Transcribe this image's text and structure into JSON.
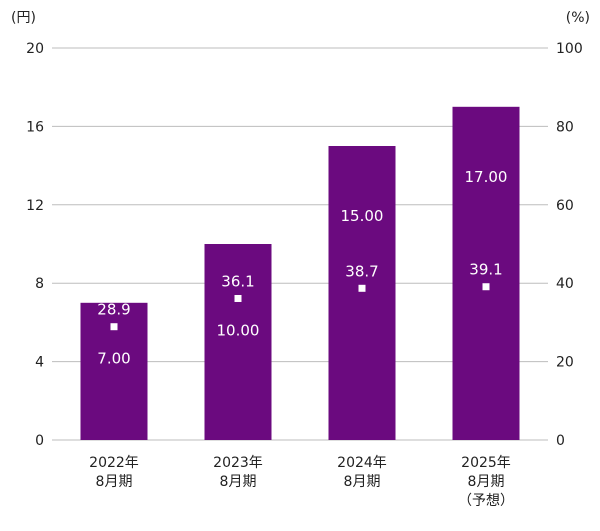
{
  "chart_data": {
    "type": "bar",
    "categories": [
      [
        "2022年",
        "8月期"
      ],
      [
        "2023年",
        "8月期"
      ],
      [
        "2024年",
        "8月期"
      ],
      [
        "2025年",
        "8月期",
        "（予想）"
      ]
    ],
    "series": [
      {
        "axis": "left",
        "kind": "bar",
        "values": [
          7.0,
          10.0,
          15.0,
          17.0
        ],
        "labels": [
          "7.00",
          "10.00",
          "15.00",
          "17.00"
        ]
      },
      {
        "axis": "right",
        "kind": "marker",
        "values": [
          28.9,
          36.1,
          38.7,
          39.1
        ],
        "labels": [
          "28.9",
          "36.1",
          "38.7",
          "39.1"
        ]
      }
    ],
    "y_left": {
      "unit": "(円)",
      "ylim": [
        0,
        20
      ],
      "ticks": [
        0,
        4,
        8,
        12,
        16,
        20
      ]
    },
    "y_right": {
      "unit": "(%)",
      "ylim": [
        0,
        100
      ],
      "ticks": [
        0,
        20,
        40,
        60,
        80,
        100
      ]
    },
    "grid": true,
    "colors": {
      "bar": "#6b0a7f",
      "grid": "#bdbdbd",
      "marker": "#ffffff",
      "text": "#222222"
    }
  }
}
